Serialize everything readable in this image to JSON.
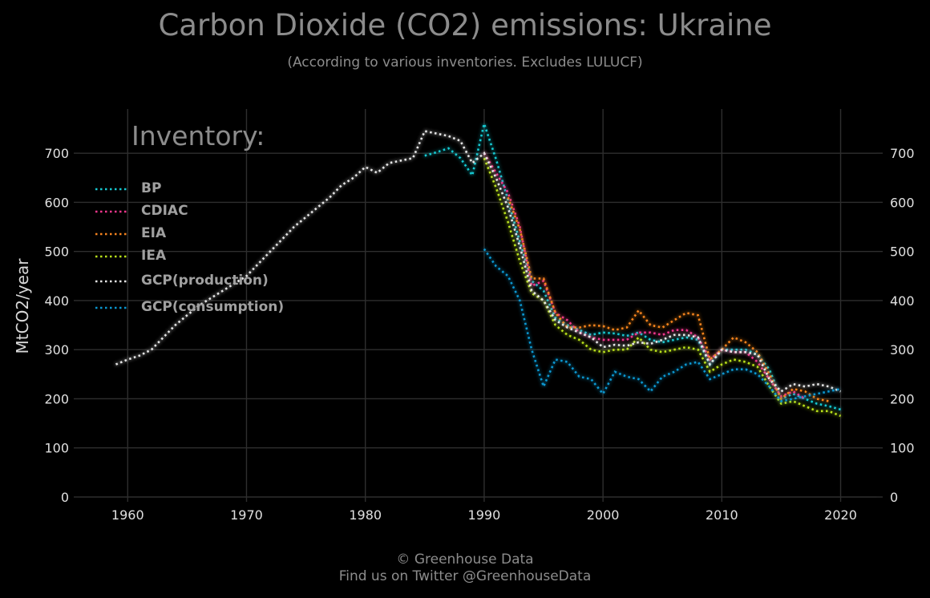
{
  "title": "Carbon Dioxide (CO2) emissions: Ukraine",
  "subtitle": "(According to various inventories. Excludes LULUCF)",
  "footer": {
    "line1": "© Greenhouse Data",
    "line2": "Find us on Twitter @GreenhouseData"
  },
  "colors": {
    "background": "#000000",
    "grid": "#2e2e2e",
    "text": "#8c8c8c",
    "tick_text": "#e0e0e0"
  },
  "chart_data": {
    "type": "line",
    "title": "Carbon Dioxide (CO2) emissions: Ukraine",
    "subtitle": "(According to various inventories. Excludes LULUCF)",
    "xlabel": "",
    "ylabel": "MtCO2/year",
    "xlim": [
      1956,
      2023
    ],
    "ylim": [
      0,
      790
    ],
    "x_ticks": [
      1960,
      1970,
      1980,
      1990,
      2000,
      2010,
      2020
    ],
    "y_ticks": [
      0,
      100,
      200,
      300,
      400,
      500,
      600,
      700
    ],
    "grid": true,
    "secondary_y_axis": true,
    "legend_title": "Inventory:",
    "legend_position": "top-left",
    "line_style": "dotted",
    "series": [
      {
        "name": "BP",
        "color": "#17c9d2",
        "x": [
          1985,
          1986,
          1987,
          1988,
          1989,
          1990,
          1991,
          1992,
          1993,
          1994,
          1995,
          1996,
          1997,
          1998,
          1999,
          2000,
          2001,
          2002,
          2003,
          2004,
          2005,
          2006,
          2007,
          2008,
          2009,
          2010,
          2011,
          2012,
          2013,
          2014,
          2015,
          2016,
          2017,
          2018,
          2019,
          2020
        ],
        "y": [
          695,
          702,
          710,
          690,
          655,
          760,
          688,
          605,
          520,
          440,
          420,
          365,
          350,
          340,
          330,
          335,
          333,
          328,
          335,
          320,
          315,
          320,
          325,
          320,
          270,
          300,
          300,
          300,
          290,
          260,
          200,
          210,
          200,
          190,
          185,
          178
        ]
      },
      {
        "name": "CDIAC",
        "color": "#f0368c",
        "x": [
          1990,
          1991,
          1992,
          1993,
          1994,
          1995,
          1996,
          1997,
          1998,
          1999,
          2000,
          2001,
          2002,
          2003,
          2004,
          2005,
          2006,
          2007,
          2008,
          2009,
          2010,
          2011,
          2012,
          2013,
          2014,
          2015,
          2016,
          2017
        ],
        "y": [
          700,
          660,
          620,
          550,
          430,
          440,
          375,
          360,
          335,
          325,
          320,
          320,
          320,
          335,
          335,
          330,
          340,
          340,
          325,
          280,
          300,
          295,
          295,
          275,
          240,
          205,
          215,
          200
        ]
      },
      {
        "name": "EIA",
        "color": "#f5831f",
        "x": [
          1992,
          1993,
          1994,
          1995,
          1996,
          1997,
          1998,
          1999,
          2000,
          2001,
          2002,
          2003,
          2004,
          2005,
          2006,
          2007,
          2008,
          2009,
          2010,
          2011,
          2012,
          2013,
          2014,
          2015,
          2016,
          2017,
          2018,
          2019
        ],
        "y": [
          610,
          545,
          445,
          445,
          375,
          345,
          345,
          350,
          348,
          340,
          345,
          380,
          350,
          345,
          360,
          375,
          370,
          280,
          300,
          325,
          315,
          295,
          250,
          200,
          220,
          215,
          200,
          195
        ]
      },
      {
        "name": "IEA",
        "color": "#b8e01c",
        "x": [
          1990,
          1991,
          1992,
          1993,
          1994,
          1995,
          1996,
          1997,
          1998,
          1999,
          2000,
          2001,
          2002,
          2003,
          2004,
          2005,
          2006,
          2007,
          2008,
          2009,
          2010,
          2011,
          2012,
          2013,
          2014,
          2015,
          2016,
          2017,
          2018,
          2019,
          2020
        ],
        "y": [
          690,
          630,
          560,
          480,
          415,
          400,
          350,
          330,
          320,
          300,
          295,
          300,
          300,
          325,
          300,
          295,
          300,
          305,
          300,
          255,
          270,
          280,
          275,
          265,
          225,
          190,
          195,
          185,
          175,
          175,
          165
        ]
      },
      {
        "name": "GCP(production)",
        "color": "#e6e6e6",
        "x": [
          1959,
          1960,
          1961,
          1962,
          1963,
          1964,
          1965,
          1966,
          1967,
          1968,
          1969,
          1970,
          1971,
          1972,
          1973,
          1974,
          1975,
          1976,
          1977,
          1978,
          1979,
          1980,
          1981,
          1982,
          1983,
          1984,
          1985,
          1986,
          1987,
          1988,
          1989,
          1990,
          1991,
          1992,
          1993,
          1994,
          1995,
          1996,
          1997,
          1998,
          1999,
          2000,
          2001,
          2002,
          2003,
          2004,
          2005,
          2006,
          2007,
          2008,
          2009,
          2010,
          2011,
          2012,
          2013,
          2014,
          2015,
          2016,
          2017,
          2018,
          2019,
          2020
        ],
        "y": [
          270,
          280,
          288,
          300,
          325,
          350,
          370,
          390,
          405,
          420,
          435,
          450,
          475,
          500,
          525,
          550,
          570,
          590,
          610,
          635,
          650,
          672,
          660,
          680,
          685,
          690,
          745,
          740,
          735,
          725,
          680,
          700,
          650,
          590,
          510,
          420,
          400,
          360,
          345,
          335,
          325,
          305,
          310,
          308,
          315,
          312,
          320,
          330,
          330,
          325,
          270,
          300,
          295,
          295,
          290,
          240,
          215,
          230,
          225,
          230,
          225,
          215
        ]
      },
      {
        "name": "GCP(consumption)",
        "color": "#0a97d1",
        "x": [
          1990,
          1991,
          1992,
          1993,
          1994,
          1995,
          1996,
          1997,
          1998,
          1999,
          2000,
          2001,
          2002,
          2003,
          2004,
          2005,
          2006,
          2007,
          2008,
          2009,
          2010,
          2011,
          2012,
          2013,
          2014,
          2015,
          2016,
          2017,
          2018,
          2019,
          2020
        ],
        "y": [
          505,
          470,
          450,
          400,
          300,
          225,
          280,
          275,
          245,
          240,
          210,
          255,
          245,
          240,
          215,
          245,
          255,
          270,
          275,
          240,
          250,
          260,
          260,
          250,
          225,
          195,
          200,
          205,
          210,
          215,
          220
        ]
      }
    ]
  }
}
